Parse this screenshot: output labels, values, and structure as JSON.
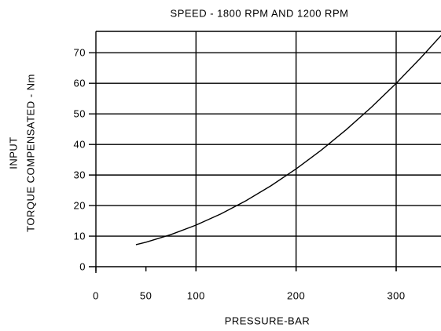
{
  "chart_data": {
    "type": "line",
    "title": "SPEED - 1800 RPM AND 1200 RPM",
    "x_label": "PRESSURE-BAR",
    "y_label_lines": [
      "INPUT",
      "TORQUE COMPENSATED - Nm"
    ],
    "x": [
      40,
      50,
      75,
      100,
      125,
      150,
      175,
      200,
      225,
      250,
      275,
      300,
      325,
      345
    ],
    "series": [
      {
        "name": "Input torque",
        "color": "#000000",
        "values": [
          7.2,
          8.0,
          10.5,
          13.6,
          17.3,
          21.6,
          26.5,
          32.0,
          38.1,
          44.8,
          52.1,
          60.0,
          68.5,
          75.7
        ]
      }
    ],
    "xlim": [
      0,
      344
    ],
    "ylim": [
      0,
      77
    ],
    "xticks": [
      0,
      50,
      100,
      200,
      300
    ],
    "x_grid_lines": [
      100,
      200,
      300
    ],
    "yticks": [
      0,
      10,
      20,
      30,
      40,
      50,
      60,
      70
    ],
    "grid": true
  }
}
